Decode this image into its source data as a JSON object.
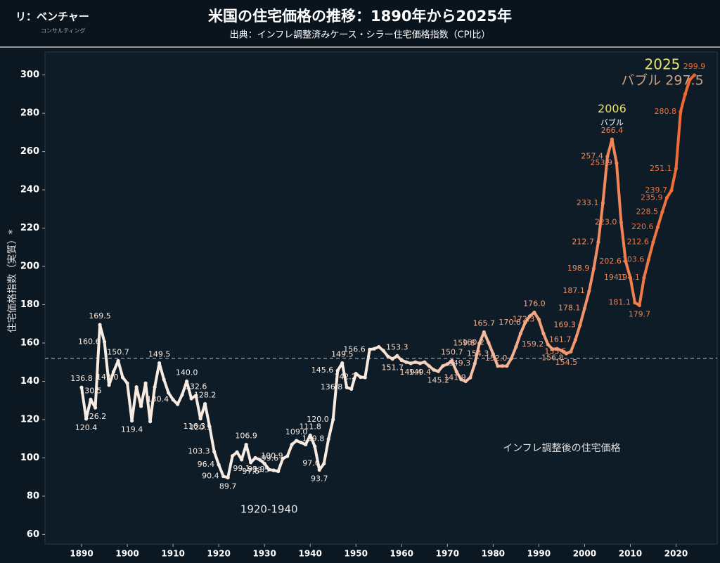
{
  "brand": {
    "name": "リ：ベンチャー",
    "sub": "コンサルティング"
  },
  "chart_data": {
    "type": "line",
    "title": "米国の住宅価格の推移：1890年から2025年",
    "subtitle": "出典：インフレ調整済みケース・シラー住宅価格指数（CPI比）",
    "ylabel": "住宅価格指数（実質）*",
    "series_name": "インフレ調整後の住宅価格",
    "color_start": "#f8ece2",
    "color_end": "#f0642a",
    "reference_line": 152,
    "grid": false,
    "xlim": [
      1882,
      2029
    ],
    "xticks": [
      1890,
      1900,
      1910,
      1920,
      1930,
      1940,
      1950,
      1960,
      1970,
      1980,
      1990,
      2000,
      2010,
      2020
    ],
    "ylim": [
      55,
      312
    ],
    "yticks": [
      60,
      80,
      100,
      120,
      140,
      160,
      180,
      200,
      220,
      240,
      260,
      280,
      300
    ],
    "x": [
      1890,
      1891,
      1892,
      1893,
      1894,
      1895,
      1896,
      1897,
      1898,
      1899,
      1900,
      1901,
      1902,
      1903,
      1904,
      1905,
      1906,
      1907,
      1908,
      1909,
      1910,
      1911,
      1912,
      1913,
      1914,
      1915,
      1916,
      1917,
      1918,
      1919,
      1920,
      1921,
      1922,
      1923,
      1924,
      1925,
      1926,
      1927,
      1928,
      1929,
      1930,
      1931,
      1932,
      1933,
      1934,
      1935,
      1936,
      1937,
      1938,
      1939,
      1940,
      1941,
      1942,
      1943,
      1944,
      1945,
      1946,
      1947,
      1948,
      1949,
      1950,
      1951,
      1952,
      1953,
      1954,
      1955,
      1956,
      1957,
      1958,
      1959,
      1960,
      1961,
      1962,
      1963,
      1964,
      1965,
      1966,
      1967,
      1968,
      1969,
      1970,
      1971,
      1972,
      1973,
      1974,
      1975,
      1976,
      1977,
      1978,
      1979,
      1980,
      1981,
      1982,
      1983,
      1984,
      1985,
      1986,
      1987,
      1988,
      1989,
      1990,
      1991,
      1992,
      1993,
      1994,
      1995,
      1996,
      1997,
      1998,
      1999,
      2000,
      2001,
      2002,
      2003,
      2004,
      2005,
      2006,
      2007,
      2008,
      2009,
      2010,
      2011,
      2012,
      2013,
      2014,
      2015,
      2016,
      2017,
      2018,
      2019,
      2020,
      2021,
      2022,
      2023,
      2024
    ],
    "values": [
      136.8,
      120.4,
      130.5,
      126.2,
      169.5,
      160.6,
      138,
      145,
      150.7,
      142.0,
      139,
      119.4,
      137,
      127,
      139,
      119,
      137,
      149.5,
      141,
      134,
      130.4,
      128,
      133,
      140.0,
      131,
      132.6,
      120.5,
      128.2,
      116.3,
      103.3,
      96.4,
      90.4,
      89.7,
      101,
      103,
      99.1,
      106.9,
      97.6,
      100,
      99,
      97,
      93.9,
      93.5,
      93,
      99.6,
      100.9,
      107,
      109.0,
      108,
      107,
      111.8,
      106,
      93.7,
      97.0,
      109.8,
      120.0,
      145.6,
      149.5,
      136.8,
      136,
      144,
      142.2,
      142,
      156.6,
      157,
      158,
      156,
      153,
      151.7,
      153.3,
      151,
      150,
      149.4,
      150,
      149.4,
      150,
      148,
      146,
      145.2,
      148,
      149,
      150.7,
      145,
      141,
      140,
      141.9,
      149.3,
      159.8,
      165.7,
      160.2,
      154.3,
      148,
      148,
      148,
      152.0,
      158,
      165,
      170.6,
      174,
      176.0,
      172.3,
      165,
      159.2,
      156.8,
      157,
      156,
      154.5,
      155.5,
      161.7,
      169.3,
      178.1,
      187.1,
      198.9,
      212.7,
      233.1,
      257.4,
      266.4,
      253.9,
      223.0,
      202.6,
      194.1,
      181.1,
      179.7,
      194.1,
      203.6,
      212.6,
      220.6,
      228.5,
      235.9,
      239.7,
      251.1,
      280.8,
      290,
      297.5,
      299.9
    ],
    "value_labels": [
      "136.8",
      "120.4",
      "130.5",
      "126.2",
      "169.5",
      "160.6",
      null,
      null,
      "150.7",
      "142.0",
      null,
      "119.4",
      null,
      null,
      null,
      null,
      null,
      "149.5",
      null,
      null,
      "130.4",
      null,
      null,
      "140.0",
      null,
      "132.6",
      "120.5",
      "128.2",
      "116.3",
      "103.3",
      "96.4",
      "90.4",
      "89.7",
      null,
      null,
      "99.1",
      "106.9",
      "97.6",
      null,
      null,
      null,
      "93.9",
      "93.5",
      null,
      "99.6",
      "100.9",
      null,
      "109.0",
      null,
      null,
      "111.8",
      null,
      "93.7",
      "97.0",
      "109.8",
      "120.0",
      "145.6",
      "149.5",
      "136.8",
      null,
      null,
      "142.2",
      null,
      "156.6",
      null,
      null,
      null,
      null,
      "151.7",
      "153.3",
      null,
      null,
      "149.4",
      null,
      "149.4",
      null,
      null,
      null,
      "145.2",
      null,
      null,
      "150.7",
      null,
      null,
      null,
      "141.9",
      "149.3",
      "159.8",
      "165.7",
      "160.2",
      "154.3",
      null,
      null,
      null,
      "152.0",
      null,
      null,
      "170.6",
      null,
      "176.0",
      "172.3",
      null,
      "159.2",
      "156.8",
      null,
      null,
      "154.5",
      "155.5",
      "161.7",
      "169.3",
      "178.1",
      "187.1",
      "198.9",
      "212.7",
      "233.1",
      "257.4",
      "266.4",
      "253.9",
      "223.0",
      "202.6",
      "194.1",
      "181.1",
      "179.7",
      "194.1",
      "203.6",
      "212.6",
      "220.6",
      "228.5",
      "235.9",
      "239.7",
      "251.1",
      "280.8",
      null,
      null,
      "299.9"
    ],
    "annotations": [
      {
        "text": "2006",
        "x": 2006,
        "y": 282,
        "color": "#e6e070",
        "size": 16
      },
      {
        "text": "バブル",
        "x": 2006,
        "y": 275,
        "color": "#ffffff",
        "size": 11
      },
      {
        "text": "2025",
        "x": 2017,
        "y": 305,
        "color": "#e6e070",
        "size": 20
      },
      {
        "text": "バブル 297.5",
        "x": 2017,
        "y": 297,
        "color": "#c9a285",
        "size": 19
      },
      {
        "text": "1920-1940",
        "x": 1931,
        "y": 73,
        "color": "#e8e8e8",
        "size": 15
      },
      {
        "text": "インフレ調整後の住宅価格",
        "x": 1995,
        "y": 105,
        "color": "#e0e0e0",
        "size": 14
      }
    ]
  }
}
